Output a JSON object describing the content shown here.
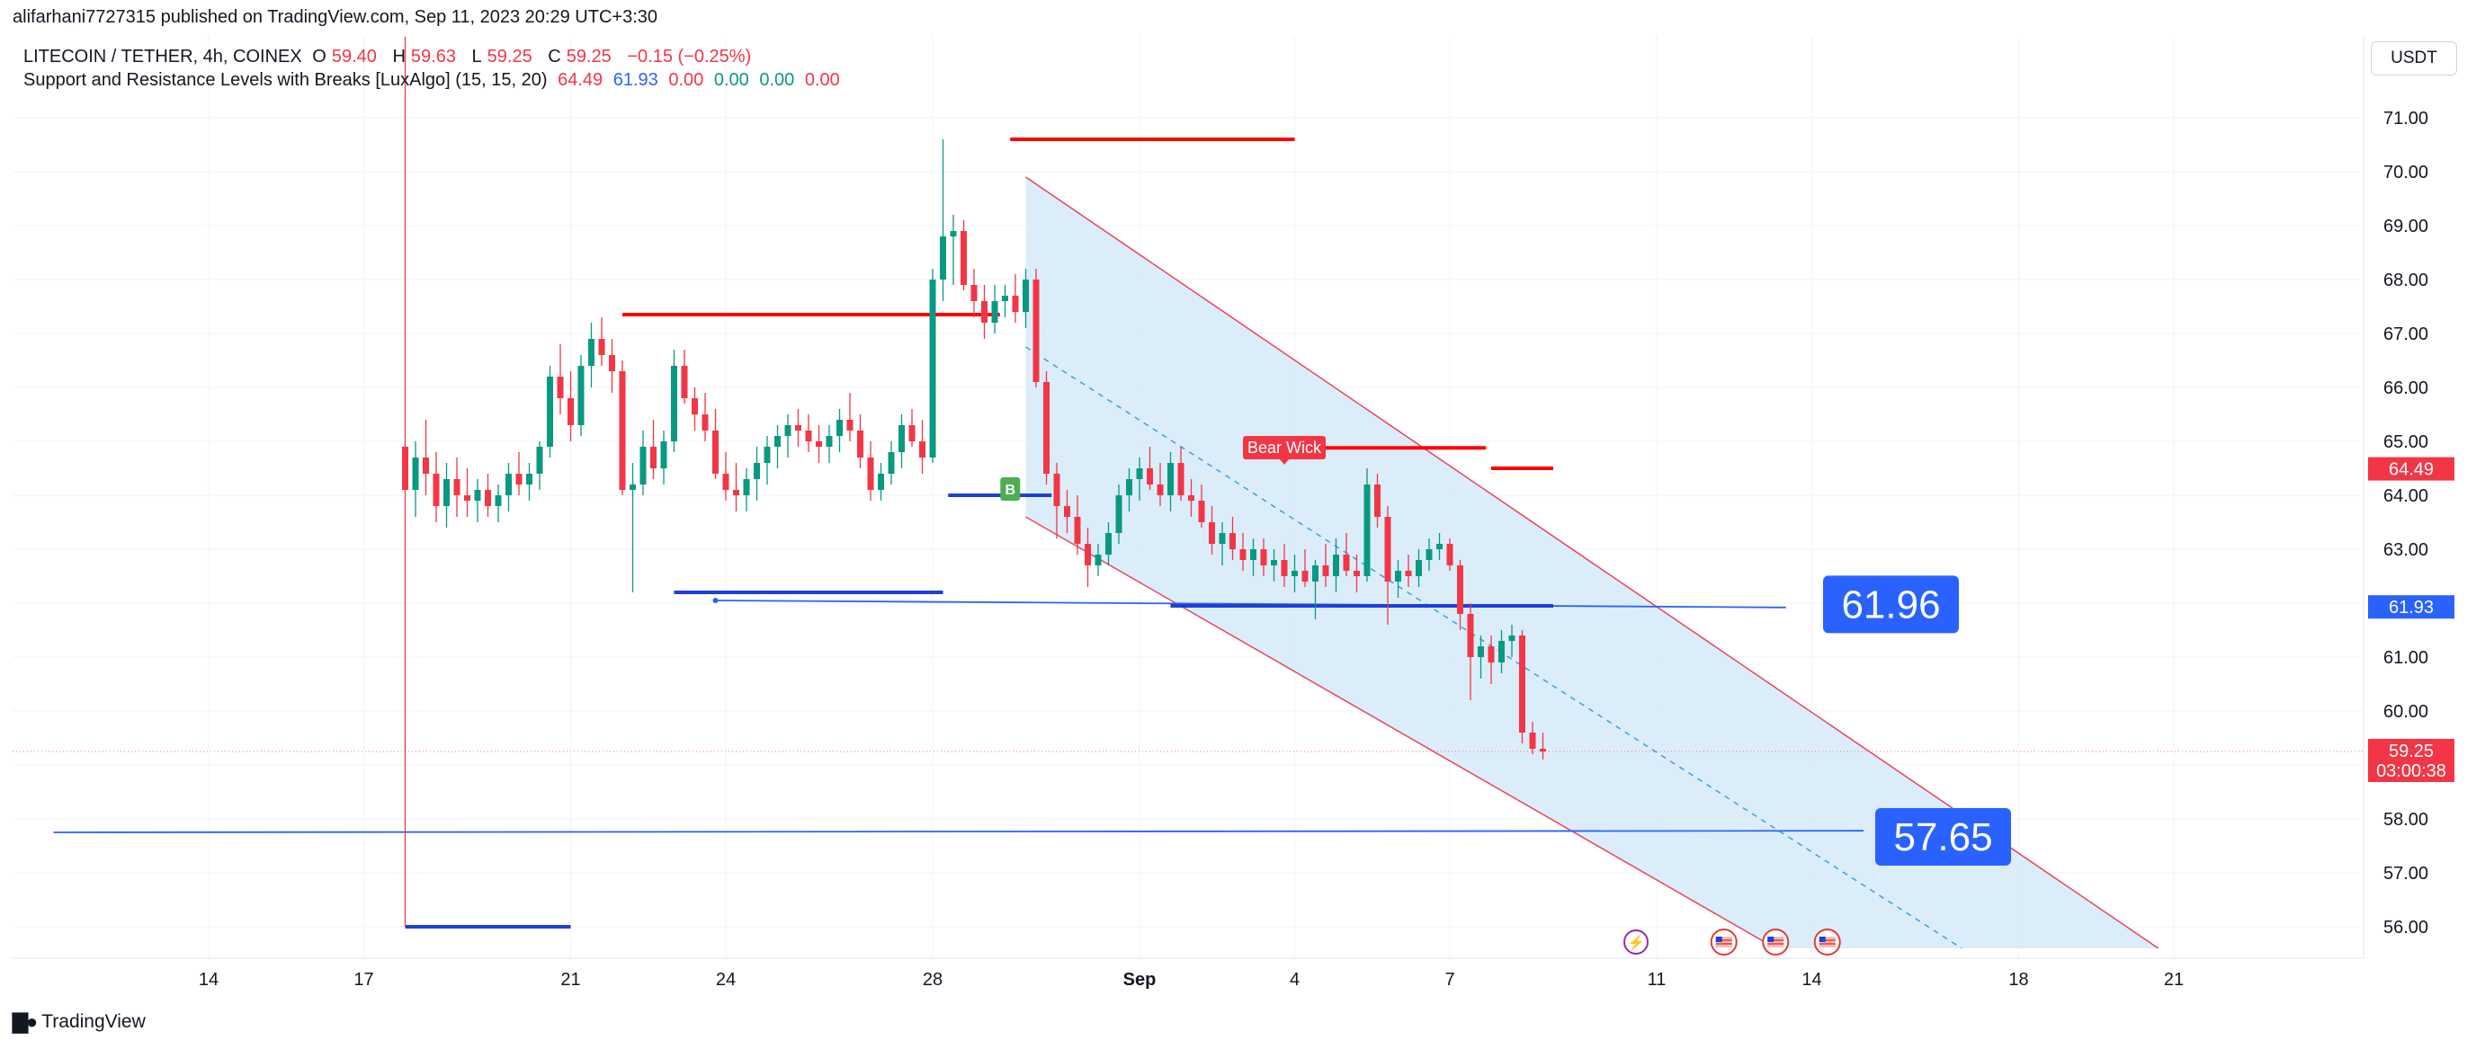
{
  "header": {
    "publisher_line": "alifarhani7727315 published on TradingView.com, Sep 11, 2023 20:29 UTC+3:30",
    "symbol_line": {
      "symbol": "LITECOIN / TETHER, 4h, COINEX",
      "open_label": "O",
      "open": "59.40",
      "high_label": "H",
      "high": "59.63",
      "low_label": "L",
      "low": "59.25",
      "close_label": "C",
      "close": "59.25",
      "change": "−0.15 (−0.25%)"
    },
    "indicator_line": {
      "name": "Support and Resistance Levels with Breaks [LuxAlgo] (15, 15, 20)",
      "v1": "64.49",
      "v2": "61.93",
      "v3": "0.00",
      "v4": "0.00",
      "v5": "0.00",
      "v6": "0.00"
    }
  },
  "currency_button": "USDT",
  "branding": "TradingView",
  "colors": {
    "bull": "#089981",
    "bear": "#f23645",
    "resistance": "#ff0000",
    "support": "#1e3fd8",
    "channel_fill": "#d6eaf9",
    "channel_border": "#e8455a"
  },
  "chart_data": {
    "type": "candlestick",
    "title": "",
    "ylim": [
      55.4,
      72.0
    ],
    "y_ticks": [
      "71.00",
      "70.00",
      "69.00",
      "68.00",
      "67.00",
      "66.00",
      "65.00",
      "64.00",
      "63.00",
      "62.00",
      "61.00",
      "60.00",
      "59.00",
      "58.00",
      "57.00",
      "56.00"
    ],
    "x_ticks": [
      {
        "label": "14",
        "day": 14
      },
      {
        "label": "17",
        "day": 17
      },
      {
        "label": "21",
        "day": 21
      },
      {
        "label": "24",
        "day": 24
      },
      {
        "label": "28",
        "day": 28
      },
      {
        "label": "Sep",
        "day": 32
      },
      {
        "label": "4",
        "day": 35
      },
      {
        "label": "7",
        "day": 38
      },
      {
        "label": "11",
        "day": 42
      },
      {
        "label": "14",
        "day": 45
      },
      {
        "label": "18",
        "day": 49
      },
      {
        "label": "21",
        "day": 52
      }
    ],
    "x_axis_note": "day index counted from Aug 1 (Sep 1 = 32)",
    "price_labels": [
      {
        "text": "64.49",
        "value": 64.49,
        "color": "#f23645"
      },
      {
        "text": "61.93",
        "value": 61.93,
        "color": "#2962ff"
      },
      {
        "text": "59.25",
        "value": 59.25,
        "color": "#f23645",
        "countdown": "03:00:38"
      }
    ],
    "big_labels": [
      {
        "text": "61.96",
        "value": 61.96
      },
      {
        "text": "57.65",
        "value": 57.65
      }
    ],
    "annotations": [
      {
        "text": "Bear Wick",
        "day": 34.8,
        "value": 64.8
      },
      {
        "text": "B",
        "day": 29.5,
        "value": 64.0
      }
    ],
    "resistance_levels": [
      {
        "from": 29.5,
        "to": 35.0,
        "value": 70.6
      },
      {
        "from": 22.0,
        "to": 29.3,
        "value": 67.35
      },
      {
        "from": 35.3,
        "to": 38.7,
        "value": 64.88
      },
      {
        "from": 38.8,
        "to": 40.0,
        "value": 64.5
      }
    ],
    "support_levels": [
      {
        "from": 17.8,
        "to": 21.0,
        "value": 56.0
      },
      {
        "from": 23.0,
        "to": 28.2,
        "value": 62.2
      },
      {
        "from": 28.3,
        "to": 30.3,
        "value": 64.0
      },
      {
        "from": 32.6,
        "to": 40.0,
        "value": 61.95
      }
    ],
    "horizontal_lines": [
      {
        "from": 11.0,
        "to": 46.0,
        "value_start": 57.75,
        "value_end": 57.78
      },
      {
        "from": 23.8,
        "to": 44.5,
        "value_start": 62.05,
        "value_end": 61.92
      }
    ],
    "channel": {
      "upper": {
        "from_day": 29.8,
        "from_value": 69.9,
        "to_day": 51.7,
        "to_value": 55.6
      },
      "lower": {
        "from_day": 29.8,
        "from_value": 63.6,
        "to_day": 44.3,
        "to_value": 55.6
      },
      "mid_dashed": {
        "from_day": 29.8,
        "from_value": 66.75,
        "to_day": 47.9,
        "to_value": 55.6
      }
    },
    "events_day": [
      41.6,
      43.3,
      44.3,
      45.3
    ],
    "candles": [
      {
        "d": 17.8,
        "o": 64.9,
        "h": 72.5,
        "l": 56.0,
        "c": 64.1
      },
      {
        "d": 18.0,
        "o": 64.1,
        "h": 65.0,
        "l": 63.6,
        "c": 64.7
      },
      {
        "d": 18.2,
        "o": 64.7,
        "h": 65.4,
        "l": 64.0,
        "c": 64.4
      },
      {
        "d": 18.4,
        "o": 64.4,
        "h": 64.8,
        "l": 63.5,
        "c": 63.8
      },
      {
        "d": 18.6,
        "o": 63.8,
        "h": 64.6,
        "l": 63.4,
        "c": 64.3
      },
      {
        "d": 18.8,
        "o": 64.3,
        "h": 64.7,
        "l": 63.6,
        "c": 64.0
      },
      {
        "d": 19.0,
        "o": 64.0,
        "h": 64.5,
        "l": 63.6,
        "c": 63.9
      },
      {
        "d": 19.2,
        "o": 63.9,
        "h": 64.3,
        "l": 63.5,
        "c": 64.1
      },
      {
        "d": 19.4,
        "o": 64.1,
        "h": 64.4,
        "l": 63.6,
        "c": 63.8
      },
      {
        "d": 19.6,
        "o": 63.8,
        "h": 64.2,
        "l": 63.5,
        "c": 64.0
      },
      {
        "d": 19.8,
        "o": 64.0,
        "h": 64.6,
        "l": 63.7,
        "c": 64.4
      },
      {
        "d": 20.0,
        "o": 64.4,
        "h": 64.8,
        "l": 64.0,
        "c": 64.2
      },
      {
        "d": 20.2,
        "o": 64.2,
        "h": 64.6,
        "l": 63.9,
        "c": 64.4
      },
      {
        "d": 20.4,
        "o": 64.4,
        "h": 65.0,
        "l": 64.1,
        "c": 64.9
      },
      {
        "d": 20.6,
        "o": 64.9,
        "h": 66.4,
        "l": 64.7,
        "c": 66.2
      },
      {
        "d": 20.8,
        "o": 66.2,
        "h": 66.8,
        "l": 65.5,
        "c": 65.8
      },
      {
        "d": 21.0,
        "o": 65.8,
        "h": 66.3,
        "l": 65.0,
        "c": 65.3
      },
      {
        "d": 21.2,
        "o": 65.3,
        "h": 66.6,
        "l": 65.1,
        "c": 66.4
      },
      {
        "d": 21.4,
        "o": 66.4,
        "h": 67.2,
        "l": 66.0,
        "c": 66.9
      },
      {
        "d": 21.6,
        "o": 66.9,
        "h": 67.3,
        "l": 66.4,
        "c": 66.6
      },
      {
        "d": 21.8,
        "o": 66.6,
        "h": 66.9,
        "l": 65.9,
        "c": 66.3
      },
      {
        "d": 22.0,
        "o": 66.3,
        "h": 66.5,
        "l": 64.0,
        "c": 64.1
      },
      {
        "d": 22.2,
        "o": 64.1,
        "h": 64.6,
        "l": 62.2,
        "c": 64.2
      },
      {
        "d": 22.4,
        "o": 64.2,
        "h": 65.2,
        "l": 64.0,
        "c": 64.9
      },
      {
        "d": 22.6,
        "o": 64.9,
        "h": 65.4,
        "l": 64.3,
        "c": 64.5
      },
      {
        "d": 22.8,
        "o": 64.5,
        "h": 65.2,
        "l": 64.2,
        "c": 65.0
      },
      {
        "d": 23.0,
        "o": 65.0,
        "h": 66.7,
        "l": 64.8,
        "c": 66.4
      },
      {
        "d": 23.2,
        "o": 66.4,
        "h": 66.7,
        "l": 65.7,
        "c": 65.8
      },
      {
        "d": 23.4,
        "o": 65.8,
        "h": 66.0,
        "l": 65.2,
        "c": 65.5
      },
      {
        "d": 23.6,
        "o": 65.5,
        "h": 65.9,
        "l": 65.0,
        "c": 65.2
      },
      {
        "d": 23.8,
        "o": 65.2,
        "h": 65.6,
        "l": 64.3,
        "c": 64.4
      },
      {
        "d": 24.0,
        "o": 64.4,
        "h": 64.8,
        "l": 63.9,
        "c": 64.1
      },
      {
        "d": 24.2,
        "o": 64.1,
        "h": 64.6,
        "l": 63.7,
        "c": 64.0
      },
      {
        "d": 24.4,
        "o": 64.0,
        "h": 64.5,
        "l": 63.7,
        "c": 64.3
      },
      {
        "d": 24.6,
        "o": 64.3,
        "h": 64.9,
        "l": 63.9,
        "c": 64.6
      },
      {
        "d": 24.8,
        "o": 64.6,
        "h": 65.1,
        "l": 64.2,
        "c": 64.9
      },
      {
        "d": 25.0,
        "o": 64.9,
        "h": 65.3,
        "l": 64.5,
        "c": 65.1
      },
      {
        "d": 25.2,
        "o": 65.1,
        "h": 65.5,
        "l": 64.7,
        "c": 65.3
      },
      {
        "d": 25.4,
        "o": 65.3,
        "h": 65.6,
        "l": 64.9,
        "c": 65.2
      },
      {
        "d": 25.6,
        "o": 65.2,
        "h": 65.5,
        "l": 64.8,
        "c": 65.0
      },
      {
        "d": 25.8,
        "o": 65.0,
        "h": 65.3,
        "l": 64.6,
        "c": 64.9
      },
      {
        "d": 26.0,
        "o": 64.9,
        "h": 65.3,
        "l": 64.6,
        "c": 65.1
      },
      {
        "d": 26.2,
        "o": 65.1,
        "h": 65.6,
        "l": 64.8,
        "c": 65.4
      },
      {
        "d": 26.4,
        "o": 65.4,
        "h": 65.9,
        "l": 65.0,
        "c": 65.2
      },
      {
        "d": 26.6,
        "o": 65.2,
        "h": 65.5,
        "l": 64.5,
        "c": 64.7
      },
      {
        "d": 26.8,
        "o": 64.7,
        "h": 65.0,
        "l": 63.9,
        "c": 64.1
      },
      {
        "d": 27.0,
        "o": 64.1,
        "h": 64.6,
        "l": 63.9,
        "c": 64.4
      },
      {
        "d": 27.2,
        "o": 64.4,
        "h": 65.0,
        "l": 64.2,
        "c": 64.8
      },
      {
        "d": 27.4,
        "o": 64.8,
        "h": 65.5,
        "l": 64.5,
        "c": 65.3
      },
      {
        "d": 27.6,
        "o": 65.3,
        "h": 65.6,
        "l": 64.9,
        "c": 65.0
      },
      {
        "d": 27.8,
        "o": 65.0,
        "h": 65.4,
        "l": 64.4,
        "c": 64.7
      },
      {
        "d": 28.0,
        "o": 64.7,
        "h": 68.2,
        "l": 64.6,
        "c": 68.0
      },
      {
        "d": 28.2,
        "o": 68.0,
        "h": 70.6,
        "l": 67.6,
        "c": 68.8
      },
      {
        "d": 28.4,
        "o": 68.8,
        "h": 69.2,
        "l": 67.9,
        "c": 68.9
      },
      {
        "d": 28.6,
        "o": 68.9,
        "h": 69.1,
        "l": 67.8,
        "c": 67.9
      },
      {
        "d": 28.8,
        "o": 67.9,
        "h": 68.2,
        "l": 67.3,
        "c": 67.6
      },
      {
        "d": 29.0,
        "o": 67.6,
        "h": 67.9,
        "l": 66.9,
        "c": 67.2
      },
      {
        "d": 29.2,
        "o": 67.2,
        "h": 67.9,
        "l": 67.0,
        "c": 67.6
      },
      {
        "d": 29.4,
        "o": 67.6,
        "h": 67.9,
        "l": 67.3,
        "c": 67.7
      },
      {
        "d": 29.6,
        "o": 67.7,
        "h": 68.1,
        "l": 67.2,
        "c": 67.4
      },
      {
        "d": 29.8,
        "o": 67.4,
        "h": 68.2,
        "l": 67.1,
        "c": 68.0
      },
      {
        "d": 30.0,
        "o": 68.0,
        "h": 68.2,
        "l": 66.0,
        "c": 66.1
      },
      {
        "d": 30.2,
        "o": 66.1,
        "h": 66.3,
        "l": 64.2,
        "c": 64.4
      },
      {
        "d": 30.4,
        "o": 64.4,
        "h": 64.6,
        "l": 63.2,
        "c": 63.8
      },
      {
        "d": 30.6,
        "o": 63.8,
        "h": 64.1,
        "l": 63.3,
        "c": 63.6
      },
      {
        "d": 30.8,
        "o": 63.6,
        "h": 64.0,
        "l": 62.9,
        "c": 63.1
      },
      {
        "d": 31.0,
        "o": 63.1,
        "h": 63.4,
        "l": 62.3,
        "c": 62.7
      },
      {
        "d": 31.2,
        "o": 62.7,
        "h": 63.1,
        "l": 62.5,
        "c": 62.9
      },
      {
        "d": 31.4,
        "o": 62.9,
        "h": 63.5,
        "l": 62.7,
        "c": 63.3
      },
      {
        "d": 31.6,
        "o": 63.3,
        "h": 64.2,
        "l": 63.1,
        "c": 64.0
      },
      {
        "d": 31.8,
        "o": 64.0,
        "h": 64.5,
        "l": 63.7,
        "c": 64.3
      },
      {
        "d": 32.0,
        "o": 64.3,
        "h": 64.7,
        "l": 63.9,
        "c": 64.5
      },
      {
        "d": 32.2,
        "o": 64.5,
        "h": 64.9,
        "l": 64.1,
        "c": 64.2
      },
      {
        "d": 32.4,
        "o": 64.2,
        "h": 64.6,
        "l": 63.8,
        "c": 64.0
      },
      {
        "d": 32.6,
        "o": 64.0,
        "h": 64.8,
        "l": 63.7,
        "c": 64.6
      },
      {
        "d": 32.8,
        "o": 64.6,
        "h": 64.9,
        "l": 63.9,
        "c": 64.0
      },
      {
        "d": 33.0,
        "o": 64.0,
        "h": 64.3,
        "l": 63.6,
        "c": 63.9
      },
      {
        "d": 33.2,
        "o": 63.9,
        "h": 64.2,
        "l": 63.4,
        "c": 63.5
      },
      {
        "d": 33.4,
        "o": 63.5,
        "h": 63.8,
        "l": 62.9,
        "c": 63.1
      },
      {
        "d": 33.6,
        "o": 63.1,
        "h": 63.5,
        "l": 62.7,
        "c": 63.3
      },
      {
        "d": 33.8,
        "o": 63.3,
        "h": 63.6,
        "l": 62.8,
        "c": 63.0
      },
      {
        "d": 34.0,
        "o": 63.0,
        "h": 63.3,
        "l": 62.6,
        "c": 62.8
      },
      {
        "d": 34.2,
        "o": 62.8,
        "h": 63.2,
        "l": 62.5,
        "c": 63.0
      },
      {
        "d": 34.4,
        "o": 63.0,
        "h": 63.2,
        "l": 62.5,
        "c": 62.7
      },
      {
        "d": 34.6,
        "o": 62.7,
        "h": 63.0,
        "l": 62.4,
        "c": 62.8
      },
      {
        "d": 34.8,
        "o": 62.8,
        "h": 63.1,
        "l": 62.3,
        "c": 62.5
      },
      {
        "d": 35.0,
        "o": 62.5,
        "h": 62.9,
        "l": 62.2,
        "c": 62.6
      },
      {
        "d": 35.2,
        "o": 62.6,
        "h": 63.0,
        "l": 62.3,
        "c": 62.4
      },
      {
        "d": 35.4,
        "o": 62.4,
        "h": 62.8,
        "l": 61.7,
        "c": 62.7
      },
      {
        "d": 35.6,
        "o": 62.7,
        "h": 63.1,
        "l": 62.3,
        "c": 62.5
      },
      {
        "d": 35.8,
        "o": 62.5,
        "h": 63.2,
        "l": 62.2,
        "c": 62.9
      },
      {
        "d": 36.0,
        "o": 62.9,
        "h": 63.3,
        "l": 62.5,
        "c": 62.6
      },
      {
        "d": 36.2,
        "o": 62.6,
        "h": 62.9,
        "l": 62.2,
        "c": 62.5
      },
      {
        "d": 36.4,
        "o": 62.5,
        "h": 64.5,
        "l": 62.4,
        "c": 64.2
      },
      {
        "d": 36.6,
        "o": 64.2,
        "h": 64.4,
        "l": 63.4,
        "c": 63.6
      },
      {
        "d": 36.8,
        "o": 63.6,
        "h": 63.8,
        "l": 61.6,
        "c": 62.4
      },
      {
        "d": 37.0,
        "o": 62.4,
        "h": 62.8,
        "l": 62.1,
        "c": 62.6
      },
      {
        "d": 37.2,
        "o": 62.6,
        "h": 62.9,
        "l": 62.3,
        "c": 62.5
      },
      {
        "d": 37.4,
        "o": 62.5,
        "h": 63.0,
        "l": 62.3,
        "c": 62.8
      },
      {
        "d": 37.6,
        "o": 62.8,
        "h": 63.2,
        "l": 62.6,
        "c": 63.0
      },
      {
        "d": 37.8,
        "o": 63.0,
        "h": 63.3,
        "l": 62.8,
        "c": 63.1
      },
      {
        "d": 38.0,
        "o": 63.1,
        "h": 63.2,
        "l": 62.6,
        "c": 62.7
      },
      {
        "d": 38.2,
        "o": 62.7,
        "h": 62.8,
        "l": 61.5,
        "c": 61.8
      },
      {
        "d": 38.4,
        "o": 61.8,
        "h": 62.0,
        "l": 60.2,
        "c": 61.0
      },
      {
        "d": 38.6,
        "o": 61.0,
        "h": 61.4,
        "l": 60.6,
        "c": 61.2
      },
      {
        "d": 38.8,
        "o": 61.2,
        "h": 61.4,
        "l": 60.5,
        "c": 60.9
      },
      {
        "d": 39.0,
        "o": 60.9,
        "h": 61.5,
        "l": 60.7,
        "c": 61.3
      },
      {
        "d": 39.2,
        "o": 61.3,
        "h": 61.6,
        "l": 61.0,
        "c": 61.4
      },
      {
        "d": 39.4,
        "o": 61.4,
        "h": 61.5,
        "l": 59.4,
        "c": 59.6
      },
      {
        "d": 39.6,
        "o": 59.6,
        "h": 59.8,
        "l": 59.2,
        "c": 59.3
      },
      {
        "d": 39.8,
        "o": 59.3,
        "h": 59.6,
        "l": 59.1,
        "c": 59.25
      }
    ]
  }
}
